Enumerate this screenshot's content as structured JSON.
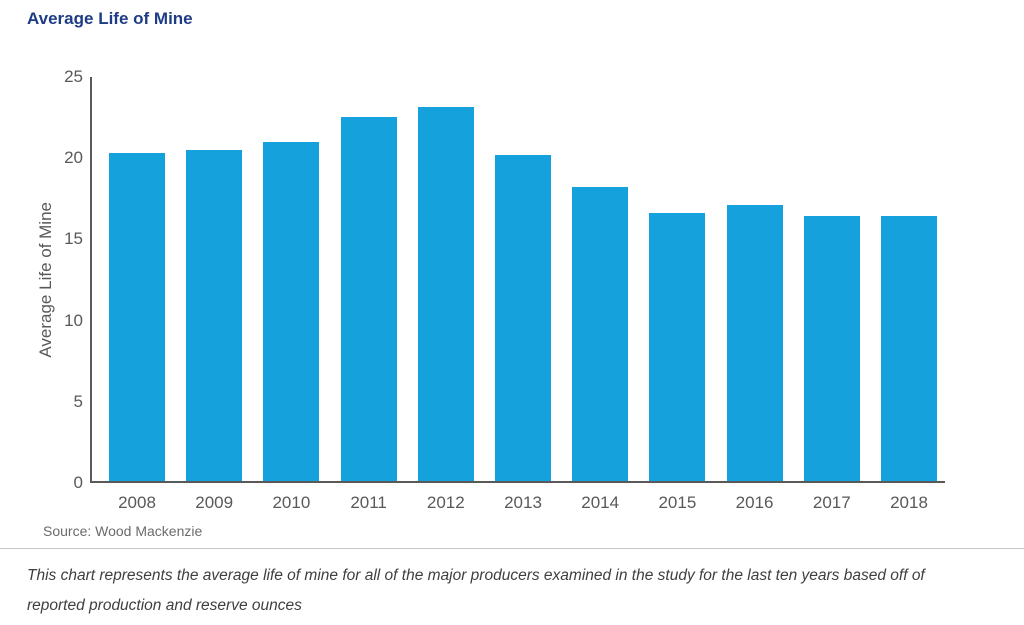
{
  "page": {
    "title": "Average Life of Mine",
    "source": "Source: Wood Mackenzie",
    "caption_line1": "This chart represents the average life of mine for all of the major producers examined in the study for the last ten years based off of",
    "caption_line2": "reported production and reserve ounces"
  },
  "colors": {
    "bar": "#14a1dc",
    "title": "#1e3c85",
    "axis_line": "#595959",
    "axis_text": "#595959",
    "source_text": "#6b6b6b",
    "caption_text": "#3f3f3f",
    "divider": "#c6c6c6"
  },
  "chart_data": {
    "type": "bar",
    "title": "Average Life of Mine",
    "categories": [
      "2008",
      "2009",
      "2010",
      "2011",
      "2012",
      "2013",
      "2014",
      "2015",
      "2016",
      "2017",
      "2018"
    ],
    "values": [
      20.2,
      20.4,
      20.9,
      22.4,
      23.0,
      20.1,
      18.1,
      16.5,
      17.0,
      16.3,
      16.3
    ],
    "xlabel": "",
    "ylabel": "Average Life of Mine",
    "ylim": [
      0,
      25
    ],
    "yticks": [
      0,
      5,
      10,
      15,
      20,
      25
    ],
    "grid": false,
    "legend_position": "none",
    "source": "Source: Wood Mackenzie",
    "bar_color": "#14a1dc"
  }
}
